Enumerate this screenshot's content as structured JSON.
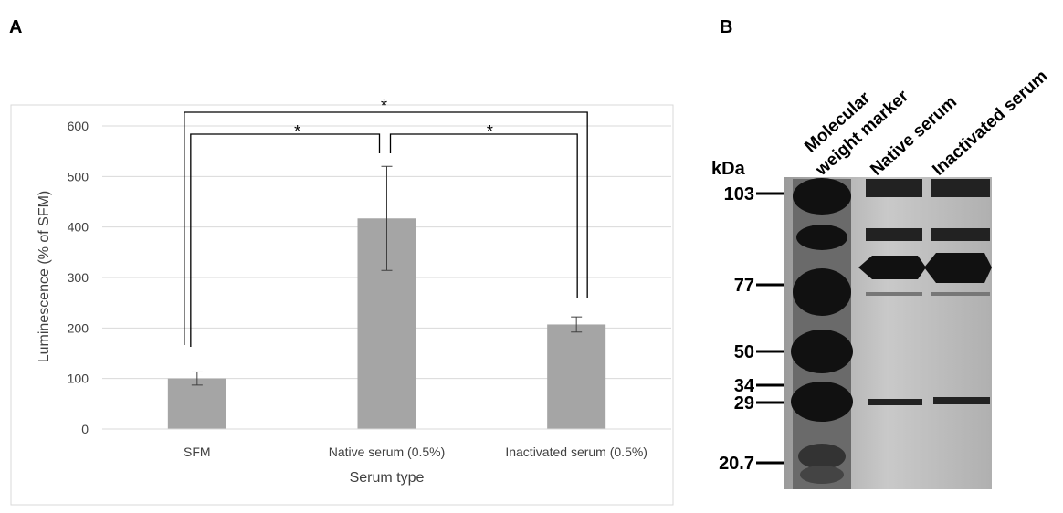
{
  "chart_data": {
    "type": "bar",
    "panel_label": "A",
    "categories": [
      "SFM",
      "Native serum (0.5%)",
      "Inactivated serum (0.5%)"
    ],
    "values": [
      100,
      417,
      207
    ],
    "errors": [
      13,
      103,
      15
    ],
    "color": "#a5a5a5",
    "x_label": "Serum type",
    "y_label": "Luminescence (% of SFM)",
    "ylim": [
      0,
      600
    ],
    "yticks": [
      0,
      100,
      200,
      300,
      400,
      500,
      600
    ],
    "grid": true,
    "annotations": [
      "*",
      "*",
      "*"
    ]
  },
  "gel": {
    "panel_label": "B",
    "unit_label": "kDa",
    "lanes": [
      [
        "Molecular",
        "weight marker"
      ],
      [
        "Native serum"
      ],
      [
        "Inactivated serum"
      ]
    ],
    "markers": [
      "103",
      "77",
      "50",
      "34",
      "29",
      "20.7"
    ]
  }
}
